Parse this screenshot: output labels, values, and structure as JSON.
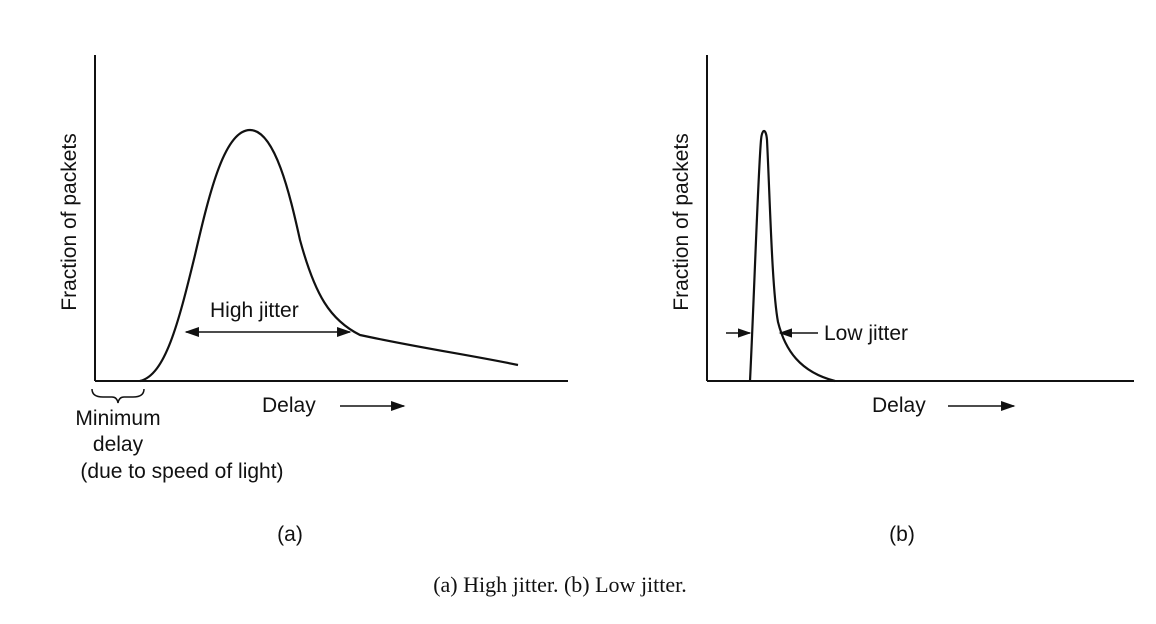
{
  "figure": {
    "caption": "(a) High jitter. (b) Low jitter.",
    "panel_a": {
      "y_label": "Fraction of packets",
      "x_label": "Delay",
      "annotation": "High jitter",
      "min_delay_line1": "Minimum",
      "min_delay_line2": "delay",
      "min_delay_line3": "(due to speed of light)",
      "panel_label": "(a)"
    },
    "panel_b": {
      "y_label": "Fraction of packets",
      "x_label": "Delay",
      "annotation": "Low jitter",
      "panel_label": "(b)"
    },
    "colors": {
      "ink": "#111111",
      "background": "#ffffff"
    }
  }
}
